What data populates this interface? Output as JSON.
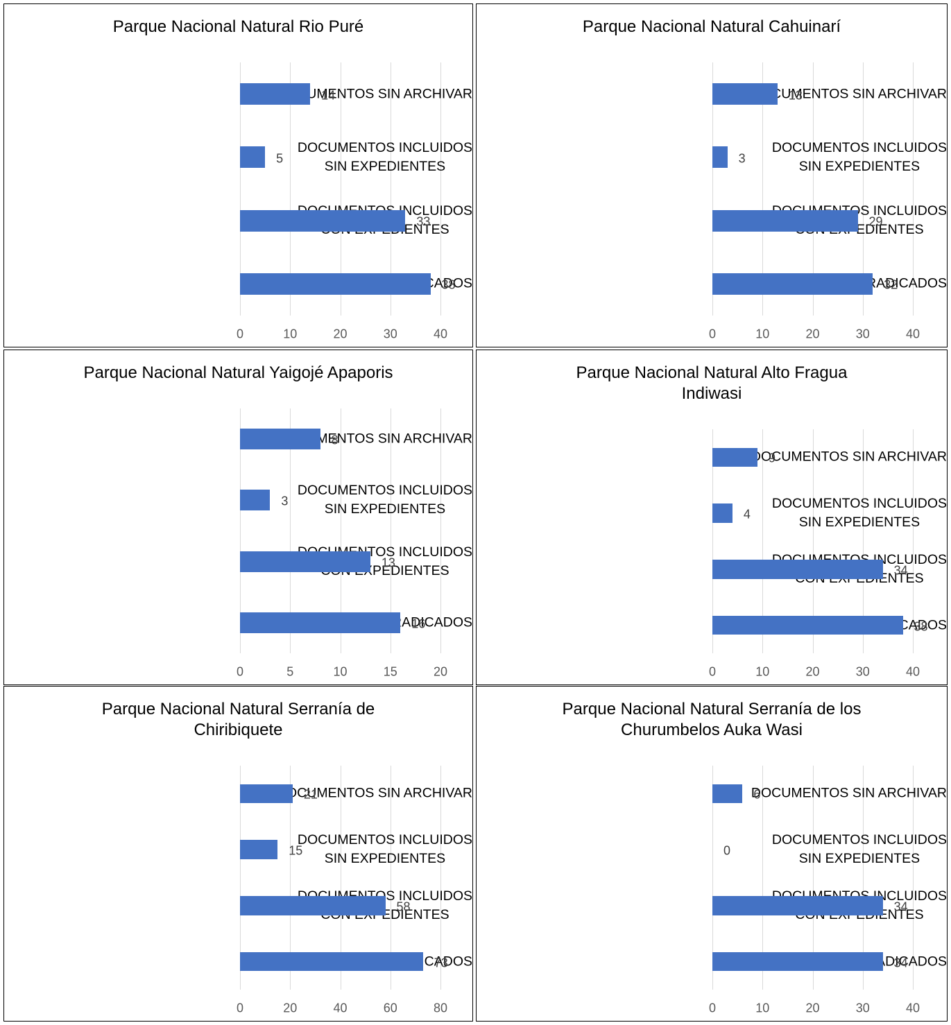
{
  "chart_data": [
    {
      "type": "bar",
      "orientation": "horizontal",
      "title": "Parque Nacional Natural Rio Puré",
      "categories": [
        "DOCUMENTOS SIN ARCHIVAR",
        "DOCUMENTOS INCLUIDOS\nSIN EXPEDIENTES",
        "DOCUMENTOS INCLUIDOS\nCON EXPEDIENTES",
        "DOCUMENTOS RADICADOS"
      ],
      "values": [
        14,
        5,
        33,
        38
      ],
      "color": "#4472c4",
      "xlim": [
        0,
        40
      ],
      "xticks": [
        0,
        10,
        20,
        30,
        40
      ],
      "grid": true
    },
    {
      "type": "bar",
      "orientation": "horizontal",
      "title": "Parque Nacional Natural Cahuinarí",
      "categories": [
        "DOCUMENTOS SIN ARCHIVAR",
        "DOCUMENTOS INCLUIDOS\nSIN EXPEDIENTES",
        "DOCUMENTOS INCLUIDOS\nCON EXPEDIENTES",
        "DOCUMENTOS RADICADOS"
      ],
      "values": [
        13,
        3,
        29,
        32
      ],
      "color": "#4472c4",
      "xlim": [
        0,
        40
      ],
      "xticks": [
        0,
        10,
        20,
        30,
        40
      ],
      "grid": true
    },
    {
      "type": "bar",
      "orientation": "horizontal",
      "title": "Parque Nacional Natural Yaigojé Apaporis",
      "categories": [
        "DOCUMENTOS SIN ARCHIVAR",
        "DOCUMENTOS INCLUIDOS\nSIN EXPEDIENTES",
        "DOCUMENTOS INCLUIDOS\nCON EXPEDIENTES",
        "DOCUMENTOS RADICADOS"
      ],
      "values": [
        8,
        3,
        13,
        16
      ],
      "color": "#4472c4",
      "xlim": [
        0,
        20
      ],
      "xticks": [
        0,
        5,
        10,
        15,
        20
      ],
      "grid": true
    },
    {
      "type": "bar",
      "orientation": "horizontal",
      "title": "Parque Nacional Natural Alto Fragua\nIndiwasi",
      "categories": [
        "DOCUMENTOS SIN ARCHIVAR",
        "DOCUMENTOS INCLUIDOS\nSIN EXPEDIENTES",
        "DOCUMENTOS INCLUIDOS\nCON EXPEDIENTES",
        "DOCUMENTOS RADICADOS"
      ],
      "values": [
        9,
        4,
        34,
        38
      ],
      "color": "#4472c4",
      "xlim": [
        0,
        40
      ],
      "xticks": [
        0,
        10,
        20,
        30,
        40
      ],
      "grid": true
    },
    {
      "type": "bar",
      "orientation": "horizontal",
      "title": "Parque Nacional Natural Serranía de\nChiribiquete",
      "categories": [
        "DOCUMENTOS SIN ARCHIVAR",
        "DOCUMENTOS INCLUIDOS\nSIN EXPEDIENTES",
        "DOCUMENTOS INCLUIDOS\nCON EXPEDIENTES",
        "DOCUMENTOS RADICADOS"
      ],
      "values": [
        21,
        15,
        58,
        73
      ],
      "color": "#4472c4",
      "xlim": [
        0,
        80
      ],
      "xticks": [
        0,
        20,
        40,
        60,
        80
      ],
      "grid": true
    },
    {
      "type": "bar",
      "orientation": "horizontal",
      "title": "Parque Nacional Natural Serranía de los\nChurumbelos Auka Wasi",
      "categories": [
        "DOCUMENTOS SIN ARCHIVAR",
        "DOCUMENTOS INCLUIDOS\nSIN EXPEDIENTES",
        "DOCUMENTOS INCLUIDOS\nCON EXPEDIENTES",
        "DOCUMENTOS RADICADOS"
      ],
      "values": [
        6,
        0,
        34,
        34
      ],
      "color": "#4472c4",
      "xlim": [
        0,
        40
      ],
      "xticks": [
        0,
        10,
        20,
        30,
        40
      ],
      "grid": true
    }
  ]
}
